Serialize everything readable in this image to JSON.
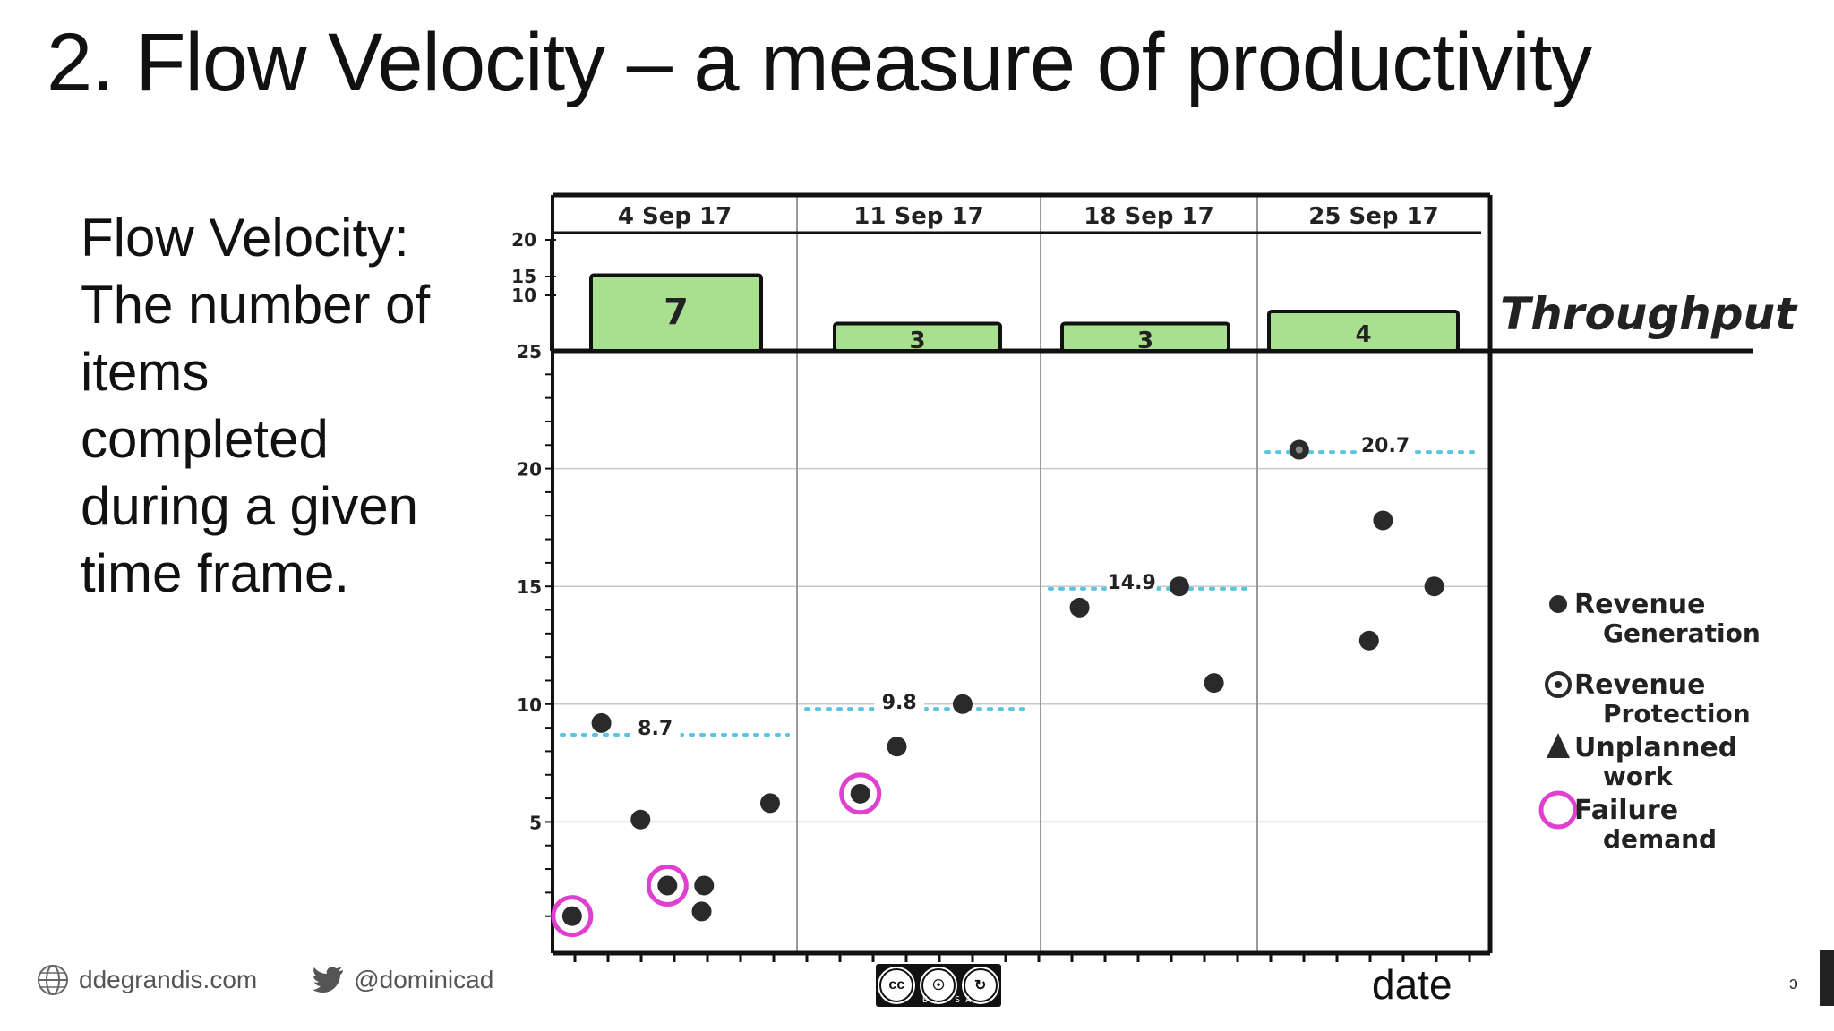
{
  "slide": {
    "title": "2. Flow Velocity – a measure of productivity",
    "definition_lines": [
      "Flow Velocity:",
      "The number of",
      "items",
      "completed",
      "during a given",
      "time frame."
    ]
  },
  "footer": {
    "website": "ddegrandis.com",
    "twitter": "@dominicad",
    "license_icons": [
      "cc-icon",
      "by-icon",
      "sa-icon"
    ],
    "license_labels": [
      "BY",
      "SA"
    ],
    "edge_mark": "ↄ"
  },
  "chart_data": {
    "type": "scatter",
    "xlabel": "date",
    "weeks": [
      "4 Sep 17",
      "11 Sep 17",
      "18 Sep 17",
      "25 Sep 17"
    ],
    "throughput": {
      "label": "Throughput",
      "values": [
        7,
        3,
        3,
        4
      ],
      "axis_ticks": [
        "20",
        "15",
        "10"
      ],
      "color": "#a8e090"
    },
    "velocity_axis": {
      "ylim": [
        0,
        25
      ],
      "ticks": [
        5,
        10,
        15,
        20,
        25
      ]
    },
    "averages": [
      {
        "week": "4 Sep 17",
        "value": 8.7,
        "label": "8.7"
      },
      {
        "week": "11 Sep 17",
        "value": 9.8,
        "label": "9.8"
      },
      {
        "week": "18 Sep 17",
        "value": 14.9,
        "label": "14.9"
      },
      {
        "week": "25 Sep 17",
        "value": 20.7,
        "label": "20.7"
      }
    ],
    "points": [
      {
        "week": 0,
        "pos": 0.08,
        "value": 1.0,
        "type": "revenue-generation",
        "failure_demand": true
      },
      {
        "week": 0,
        "pos": 0.2,
        "value": 9.2,
        "type": "revenue-generation",
        "failure_demand": false
      },
      {
        "week": 0,
        "pos": 0.36,
        "value": 5.1,
        "type": "revenue-generation",
        "failure_demand": false
      },
      {
        "week": 0,
        "pos": 0.47,
        "value": 2.3,
        "type": "revenue-generation",
        "failure_demand": true
      },
      {
        "week": 0,
        "pos": 0.62,
        "value": 2.3,
        "type": "revenue-generation",
        "failure_demand": false
      },
      {
        "week": 0,
        "pos": 0.61,
        "value": 1.2,
        "type": "revenue-generation",
        "failure_demand": false
      },
      {
        "week": 0,
        "pos": 0.89,
        "value": 5.8,
        "type": "revenue-generation",
        "failure_demand": false
      },
      {
        "week": 1,
        "pos": 0.26,
        "value": 6.2,
        "type": "revenue-generation",
        "failure_demand": true
      },
      {
        "week": 1,
        "pos": 0.41,
        "value": 8.2,
        "type": "revenue-generation",
        "failure_demand": false
      },
      {
        "week": 1,
        "pos": 0.68,
        "value": 10.0,
        "type": "revenue-generation",
        "failure_demand": false
      },
      {
        "week": 2,
        "pos": 0.18,
        "value": 14.1,
        "type": "revenue-generation",
        "failure_demand": false
      },
      {
        "week": 2,
        "pos": 0.64,
        "value": 15.0,
        "type": "revenue-generation",
        "failure_demand": false
      },
      {
        "week": 2,
        "pos": 0.8,
        "value": 10.9,
        "type": "revenue-generation",
        "failure_demand": false
      },
      {
        "week": 3,
        "pos": 0.18,
        "value": 20.8,
        "type": "revenue-protection",
        "failure_demand": false
      },
      {
        "week": 3,
        "pos": 0.54,
        "value": 17.8,
        "type": "revenue-generation",
        "failure_demand": false
      },
      {
        "week": 3,
        "pos": 0.48,
        "value": 12.7,
        "type": "revenue-generation",
        "failure_demand": false
      },
      {
        "week": 3,
        "pos": 0.76,
        "value": 15.0,
        "type": "revenue-generation",
        "failure_demand": false
      }
    ],
    "legend": [
      {
        "key": "revenue-generation",
        "lines": [
          "Revenue",
          "Generation"
        ]
      },
      {
        "key": "revenue-protection",
        "lines": [
          "Revenue",
          "Protection"
        ]
      },
      {
        "key": "unplanned-work",
        "lines": [
          "Unplanned",
          "work"
        ]
      },
      {
        "key": "failure-demand",
        "lines": [
          "Failure",
          "demand"
        ]
      }
    ],
    "legend_placement": "right",
    "colors": {
      "point": "#2a2a2a",
      "average_line": "#5bc4e0",
      "failure_ring": "#e040d0",
      "grid": "#c8c8c8"
    }
  }
}
